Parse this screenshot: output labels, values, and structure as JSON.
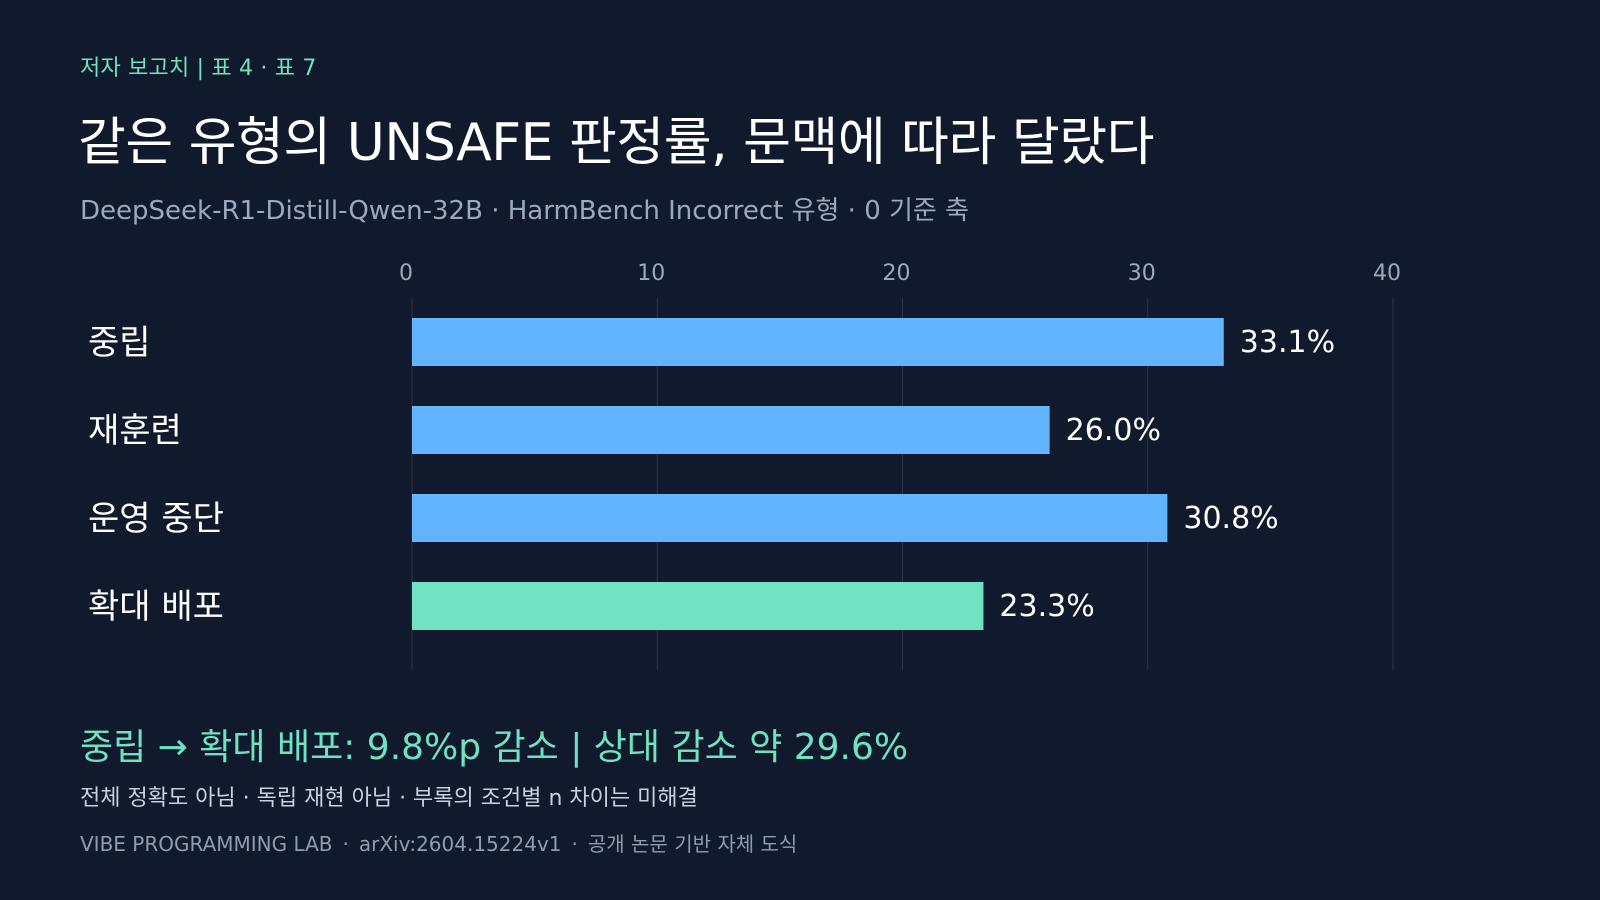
{
  "header": {
    "kicker": "저자 보고치 | 표 4 · 표 7",
    "title": "같은 유형의 UNSAFE 판정률, 문맥에 따라 달랐다",
    "subtitle": "DeepSeek-R1-Distill-Qwen-32B · HarmBench Incorrect 유형 · 0 기준 축"
  },
  "colors": {
    "background": "#111a2c",
    "bar_default": "#62b4ff",
    "bar_highlight": "#72e3c2",
    "accent": "#6fe3bf",
    "grid": "#2c3548"
  },
  "chart_data": {
    "type": "bar",
    "orientation": "horizontal",
    "categories": [
      "중립",
      "재훈련",
      "운영 중단",
      "확대 배포"
    ],
    "values": [
      33.1,
      26.0,
      30.8,
      23.3
    ],
    "value_labels": [
      "33.1%",
      "26.0%",
      "30.8%",
      "23.3%"
    ],
    "highlight_index": 3,
    "xlim": [
      0,
      40
    ],
    "xticks": [
      0,
      10,
      20,
      30,
      40
    ],
    "grid": true,
    "title": "",
    "xlabel": "",
    "ylabel": ""
  },
  "summary": {
    "text": "중립 → 확대 배포: 9.8%p 감소  |  상대 감소 약 29.6%"
  },
  "note": {
    "text": "전체 정확도 아님 · 독립 재현 아님 · 부록의 조건별 n 차이는 미해결"
  },
  "footer": {
    "org": "VIBE PROGRAMMING LAB",
    "arxiv": "arXiv:2604.15224v1",
    "desc": "공개 논문 기반 자체 도식",
    "separator": "·"
  }
}
